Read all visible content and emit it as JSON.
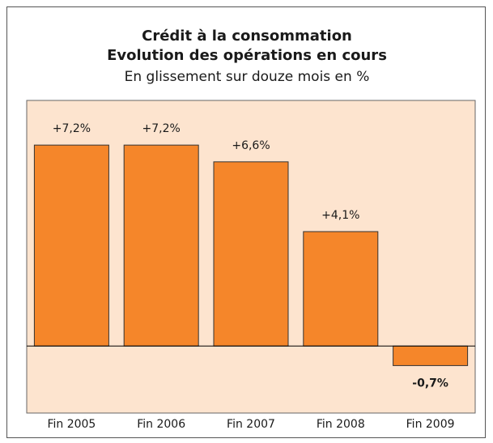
{
  "chart_data": {
    "type": "bar",
    "title": [
      "Crédit à la consommation",
      "Evolution des opérations en cours"
    ],
    "subtitle": "En glissement sur douze mois en %",
    "categories": [
      "Fin 2005",
      "Fin 2006",
      "Fin 2007",
      "Fin 2008",
      "Fin 2009"
    ],
    "values": [
      7.2,
      7.2,
      6.6,
      4.1,
      -0.7
    ],
    "value_labels": [
      "+7,2%",
      "+7,2%",
      "+6,6%",
      "+4,1%",
      "-0,7%"
    ],
    "color": "#f5862a",
    "background": "#fde4cf",
    "ylim": [
      -2.4,
      8.8
    ]
  }
}
